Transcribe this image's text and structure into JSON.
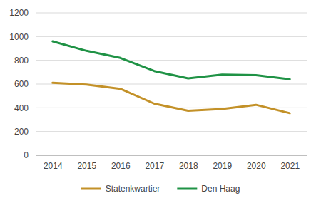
{
  "chart_data": {
    "type": "line",
    "categories": [
      "2014",
      "2015",
      "2016",
      "2017",
      "2018",
      "2019",
      "2020",
      "2021"
    ],
    "series": [
      {
        "name": "Statenkwartier",
        "color": "#c39128",
        "values": [
          610,
          595,
          560,
          435,
          375,
          390,
          425,
          355
        ]
      },
      {
        "name": "Den Haag",
        "color": "#1f9245",
        "values": [
          960,
          880,
          820,
          710,
          648,
          680,
          675,
          640
        ]
      }
    ],
    "ylim": [
      0,
      1200
    ],
    "yticks": [
      0,
      200,
      400,
      600,
      800,
      1000,
      1200
    ],
    "grid": true,
    "legend": "bottom"
  }
}
